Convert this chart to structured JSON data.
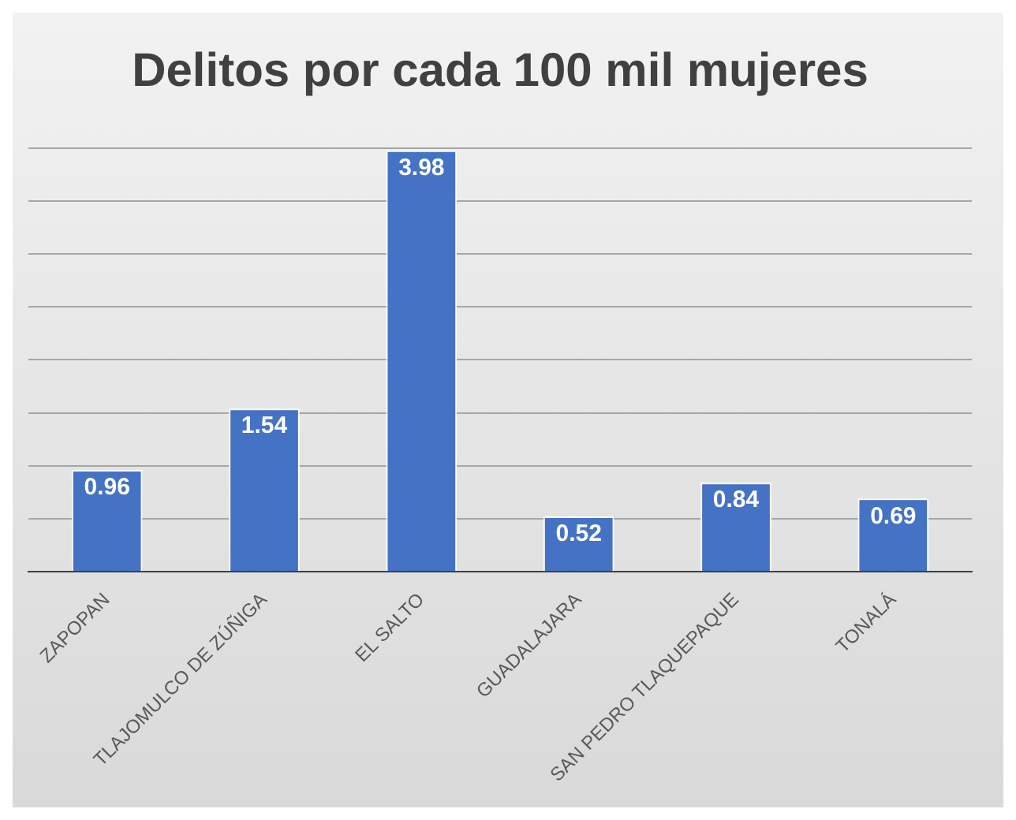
{
  "chart_data": {
    "type": "bar",
    "title": "Delitos por cada 100 mil mujeres",
    "categories": [
      "ZAPOPAN",
      "TLAJOMULCO DE ZÚÑIGA",
      "EL SALTO",
      "GUADALAJARA",
      "SAN PEDRO TLAQUEPAQUE",
      "TONALÁ"
    ],
    "values": [
      0.96,
      1.54,
      3.98,
      0.52,
      0.84,
      0.69
    ],
    "color": "#4472c4",
    "grid": "y",
    "tick_labels": "x",
    "data_labels": true
  }
}
